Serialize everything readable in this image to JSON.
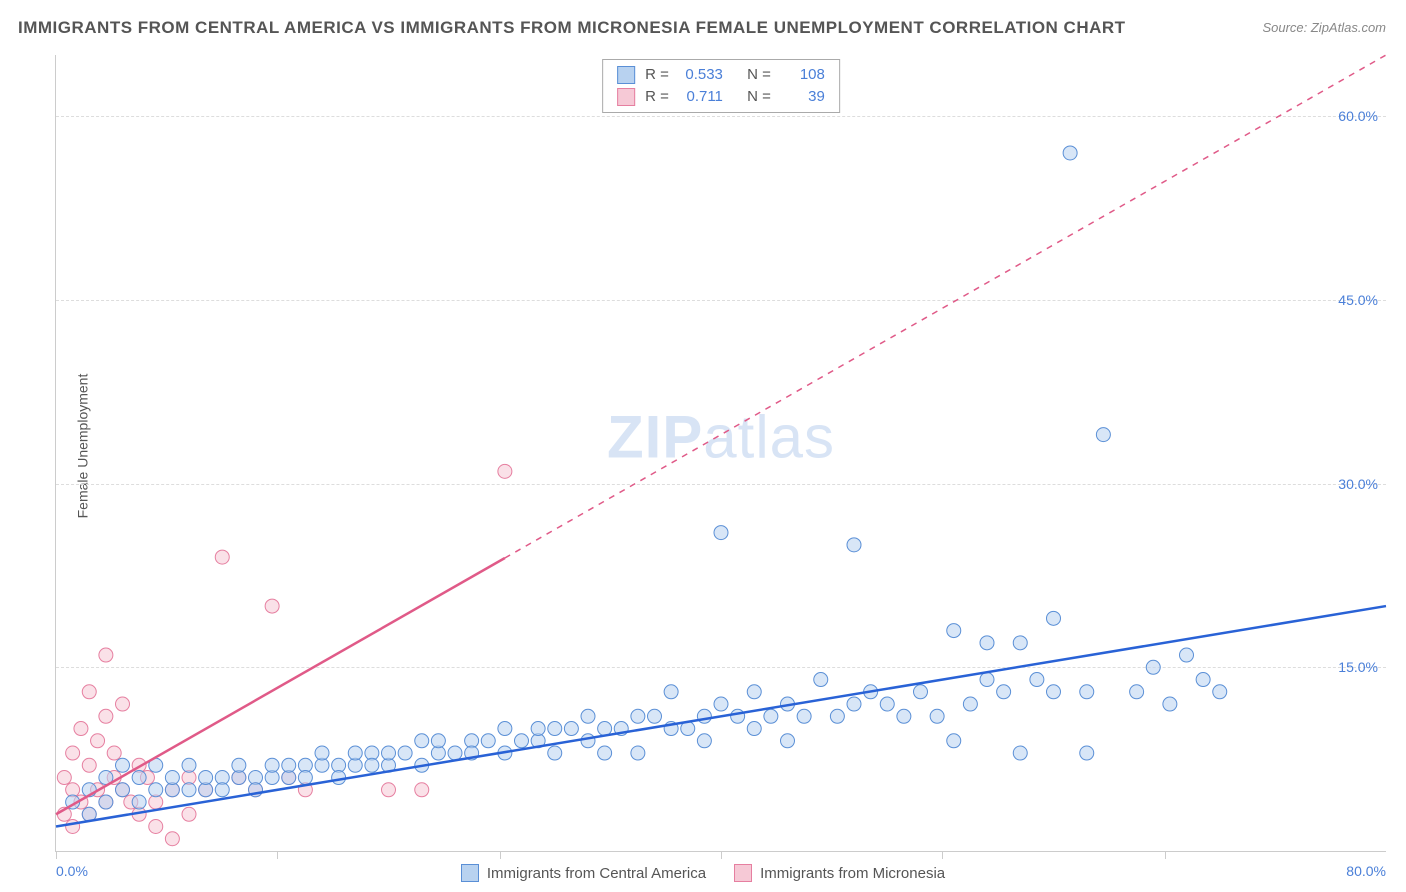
{
  "title": "IMMIGRANTS FROM CENTRAL AMERICA VS IMMIGRANTS FROM MICRONESIA FEMALE UNEMPLOYMENT CORRELATION CHART",
  "source": "Source: ZipAtlas.com",
  "ylabel": "Female Unemployment",
  "watermark_a": "ZIP",
  "watermark_b": "atlas",
  "axes": {
    "xlim": [
      0,
      80
    ],
    "ylim": [
      0,
      65
    ],
    "x_tick_labels": [
      "0.0%",
      "80.0%"
    ],
    "x_tick_positions": [
      0,
      13.3,
      26.7,
      40,
      53.3,
      66.7
    ],
    "y_ticks": [
      {
        "v": 15,
        "label": "15.0%"
      },
      {
        "v": 30,
        "label": "30.0%"
      },
      {
        "v": 45,
        "label": "45.0%"
      },
      {
        "v": 60,
        "label": "60.0%"
      }
    ],
    "grid_color": "#dddddd",
    "axis_color": "#cccccc",
    "tick_label_color": "#4a7fd8"
  },
  "series": [
    {
      "id": "central_america",
      "name": "Immigrants from Central America",
      "color_fill": "#b8d2f0",
      "color_stroke": "#5a8fd6",
      "line_color": "#2962d6",
      "marker_radius": 7,
      "fill_opacity": 0.55,
      "r": 0.533,
      "n": 108,
      "trend": {
        "x1": 0,
        "y1": 2.0,
        "x2": 80,
        "y2": 20.0,
        "dashed": false,
        "dash_from_x": null
      },
      "points": [
        [
          1,
          4
        ],
        [
          2,
          5
        ],
        [
          2,
          3
        ],
        [
          3,
          6
        ],
        [
          3,
          4
        ],
        [
          4,
          5
        ],
        [
          4,
          7
        ],
        [
          5,
          4
        ],
        [
          5,
          6
        ],
        [
          6,
          5
        ],
        [
          6,
          7
        ],
        [
          7,
          5
        ],
        [
          7,
          6
        ],
        [
          8,
          5
        ],
        [
          8,
          7
        ],
        [
          9,
          5
        ],
        [
          9,
          6
        ],
        [
          10,
          6
        ],
        [
          10,
          5
        ],
        [
          11,
          6
        ],
        [
          11,
          7
        ],
        [
          12,
          6
        ],
        [
          12,
          5
        ],
        [
          13,
          6
        ],
        [
          13,
          7
        ],
        [
          14,
          6
        ],
        [
          14,
          7
        ],
        [
          15,
          7
        ],
        [
          15,
          6
        ],
        [
          16,
          7
        ],
        [
          16,
          8
        ],
        [
          17,
          7
        ],
        [
          17,
          6
        ],
        [
          18,
          7
        ],
        [
          18,
          8
        ],
        [
          19,
          8
        ],
        [
          19,
          7
        ],
        [
          20,
          7
        ],
        [
          20,
          8
        ],
        [
          21,
          8
        ],
        [
          22,
          7
        ],
        [
          22,
          9
        ],
        [
          23,
          8
        ],
        [
          23,
          9
        ],
        [
          24,
          8
        ],
        [
          25,
          9
        ],
        [
          25,
          8
        ],
        [
          26,
          9
        ],
        [
          27,
          8
        ],
        [
          27,
          10
        ],
        [
          28,
          9
        ],
        [
          29,
          9
        ],
        [
          29,
          10
        ],
        [
          30,
          10
        ],
        [
          30,
          8
        ],
        [
          31,
          10
        ],
        [
          32,
          9
        ],
        [
          32,
          11
        ],
        [
          33,
          10
        ],
        [
          33,
          8
        ],
        [
          34,
          10
        ],
        [
          35,
          11
        ],
        [
          35,
          8
        ],
        [
          36,
          11
        ],
        [
          37,
          10
        ],
        [
          37,
          13
        ],
        [
          38,
          10
        ],
        [
          39,
          11
        ],
        [
          39,
          9
        ],
        [
          40,
          26
        ],
        [
          40,
          12
        ],
        [
          41,
          11
        ],
        [
          42,
          10
        ],
        [
          42,
          13
        ],
        [
          43,
          11
        ],
        [
          44,
          12
        ],
        [
          44,
          9
        ],
        [
          45,
          11
        ],
        [
          46,
          14
        ],
        [
          47,
          11
        ],
        [
          48,
          12
        ],
        [
          48,
          25
        ],
        [
          49,
          13
        ],
        [
          50,
          12
        ],
        [
          51,
          11
        ],
        [
          52,
          13
        ],
        [
          53,
          11
        ],
        [
          54,
          18
        ],
        [
          54,
          9
        ],
        [
          55,
          12
        ],
        [
          56,
          14
        ],
        [
          56,
          17
        ],
        [
          57,
          13
        ],
        [
          58,
          17
        ],
        [
          58,
          8
        ],
        [
          59,
          14
        ],
        [
          60,
          19
        ],
        [
          60,
          13
        ],
        [
          61,
          57
        ],
        [
          62,
          13
        ],
        [
          62,
          8
        ],
        [
          63,
          34
        ],
        [
          65,
          13
        ],
        [
          66,
          15
        ],
        [
          67,
          12
        ],
        [
          68,
          16
        ],
        [
          69,
          14
        ],
        [
          70,
          13
        ]
      ]
    },
    {
      "id": "micronesia",
      "name": "Immigrants from Micronesia",
      "color_fill": "#f6c9d6",
      "color_stroke": "#e67fa0",
      "line_color": "#e05a88",
      "marker_radius": 7,
      "fill_opacity": 0.55,
      "r": 0.711,
      "n": 39,
      "trend": {
        "x1": 0,
        "y1": 3.0,
        "x2": 80,
        "y2": 65.0,
        "dashed": true,
        "dash_from_x": 27
      },
      "points": [
        [
          0.5,
          3
        ],
        [
          0.5,
          6
        ],
        [
          1,
          2
        ],
        [
          1,
          5
        ],
        [
          1,
          8
        ],
        [
          1.5,
          4
        ],
        [
          1.5,
          10
        ],
        [
          2,
          3
        ],
        [
          2,
          7
        ],
        [
          2,
          13
        ],
        [
          2.5,
          5
        ],
        [
          2.5,
          9
        ],
        [
          3,
          4
        ],
        [
          3,
          11
        ],
        [
          3,
          16
        ],
        [
          3.5,
          6
        ],
        [
          3.5,
          8
        ],
        [
          4,
          5
        ],
        [
          4,
          12
        ],
        [
          4.5,
          4
        ],
        [
          5,
          7
        ],
        [
          5,
          3
        ],
        [
          5.5,
          6
        ],
        [
          6,
          4
        ],
        [
          6,
          2
        ],
        [
          7,
          5
        ],
        [
          7,
          1
        ],
        [
          8,
          6
        ],
        [
          8,
          3
        ],
        [
          9,
          5
        ],
        [
          10,
          24
        ],
        [
          11,
          6
        ],
        [
          12,
          5
        ],
        [
          13,
          20
        ],
        [
          14,
          6
        ],
        [
          15,
          5
        ],
        [
          20,
          5
        ],
        [
          22,
          5
        ],
        [
          27,
          31
        ]
      ]
    }
  ],
  "legend_top": {
    "r_label": "R =",
    "n_label": "N ="
  },
  "colors": {
    "title": "#555555",
    "source": "#888888",
    "watermark": "#d8e4f5",
    "stat_value": "#4a7fd8"
  }
}
